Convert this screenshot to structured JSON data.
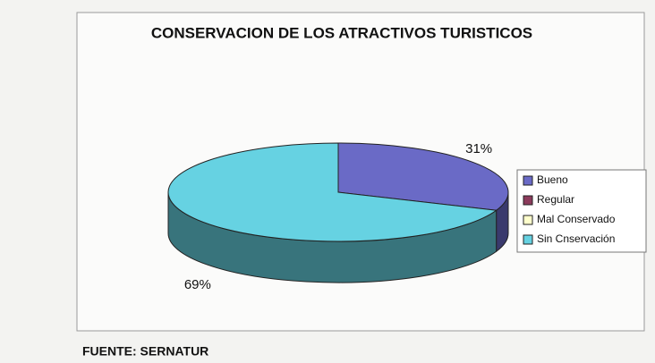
{
  "chart_data": {
    "type": "pie",
    "title": "CONSERVACION DE LOS ATRACTIVOS TURISTICOS",
    "categories": [
      "Bueno",
      "Regular",
      "Mal Conservado",
      "Sin Cnservación"
    ],
    "values": [
      31,
      0,
      0,
      69
    ],
    "value_labels": [
      "31%",
      null,
      null,
      "69%"
    ],
    "colors": [
      "#6a6ac6",
      "#8c3b5c",
      "#ffffcc",
      "#66d2e2"
    ],
    "legend": "right",
    "source": "FUENTE: SERNATUR"
  }
}
